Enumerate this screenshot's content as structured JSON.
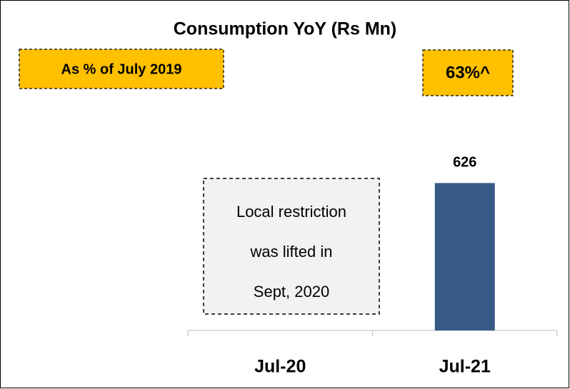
{
  "chart_data": {
    "type": "bar",
    "title": "Consumption YoY (Rs Mn)",
    "categories": [
      "Jul-20",
      "Jul-21"
    ],
    "values": [
      null,
      626
    ],
    "color": "#375a87",
    "ylim": [
      0,
      800
    ],
    "annotations": [
      {
        "text": "As % of July 2019"
      },
      {
        "text": "63%^"
      },
      {
        "lines": [
          "Local restriction",
          "was lifted in",
          "Sept, 2020"
        ]
      }
    ]
  }
}
